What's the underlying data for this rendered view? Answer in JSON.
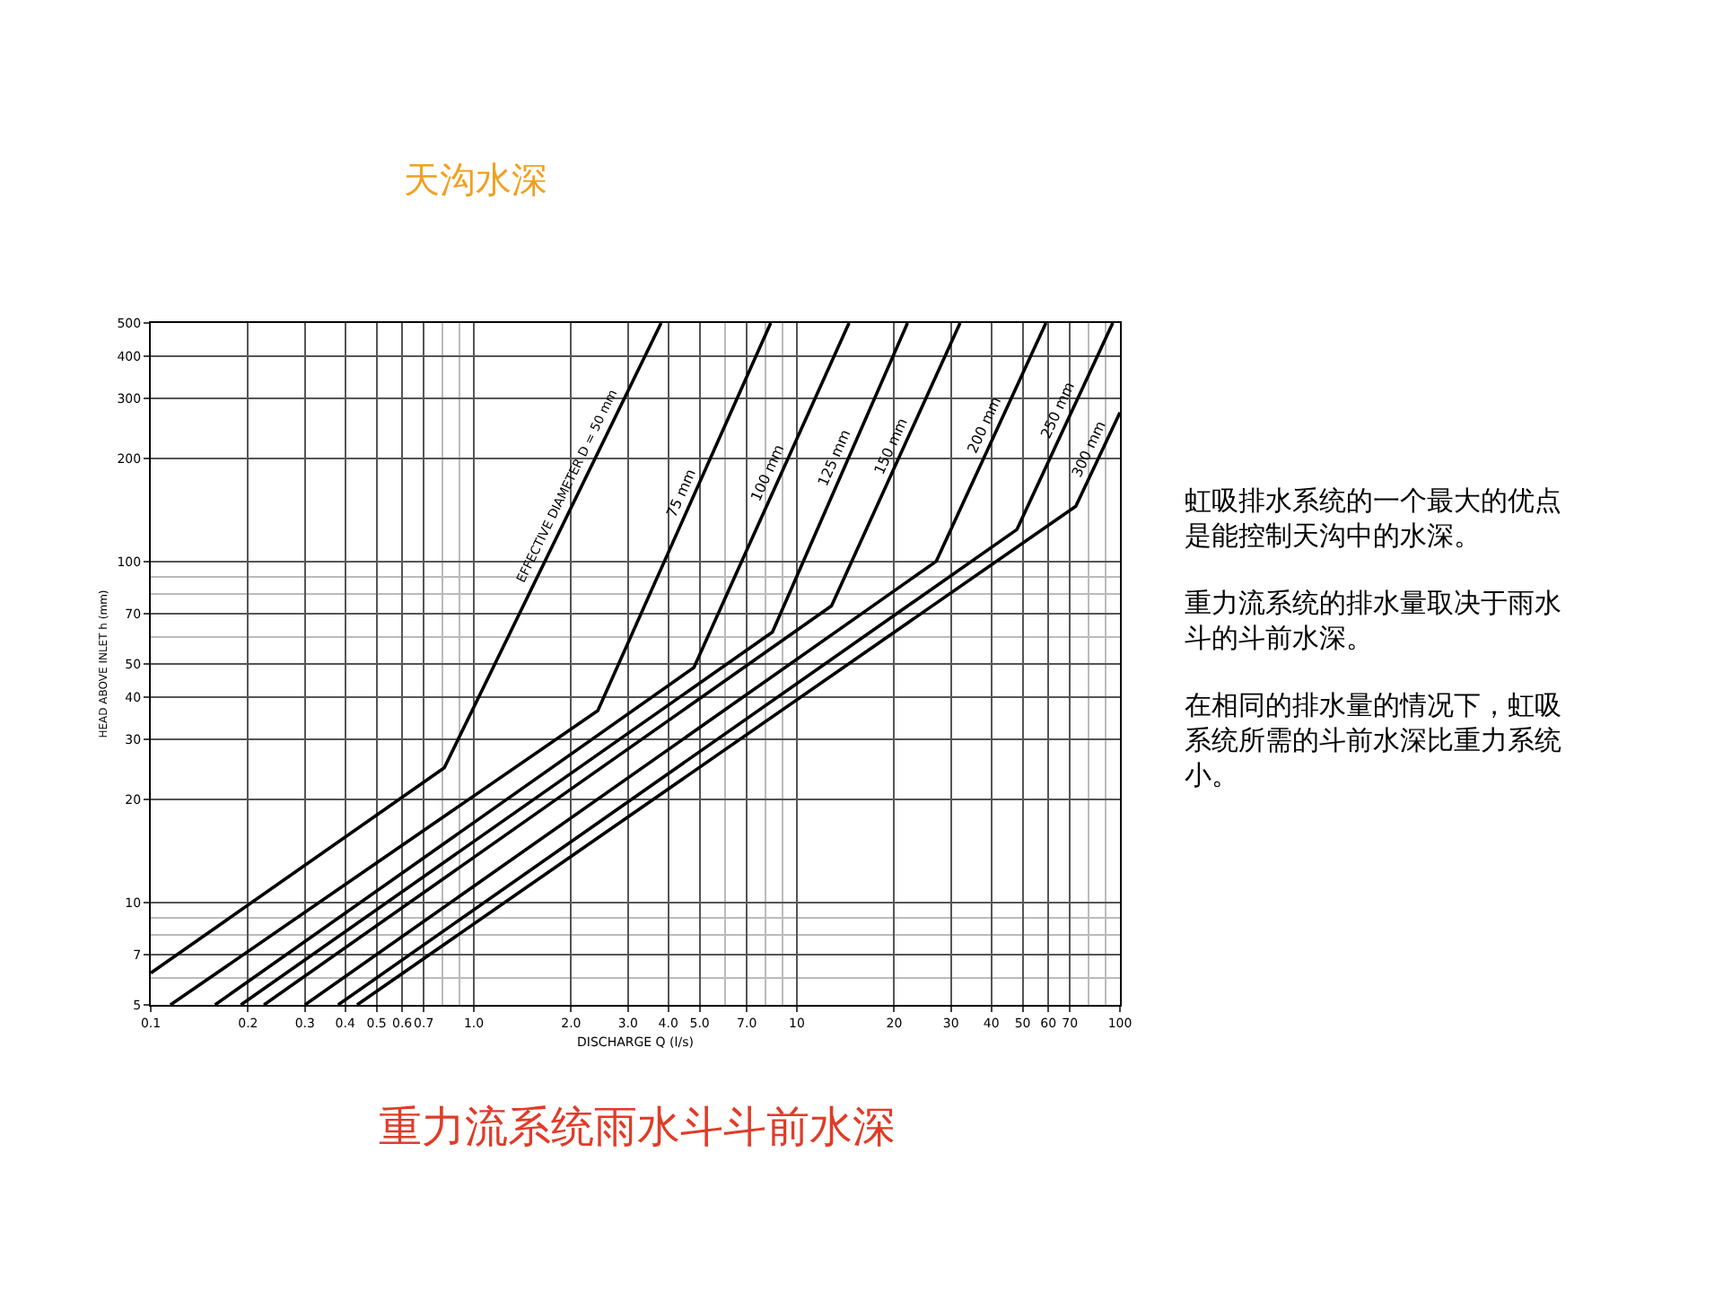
{
  "chart_data": {
    "type": "line",
    "title": "天沟水深",
    "xlabel": "DISCHARGE Q (l/s)",
    "ylabel": "HEAD ABOVE INLET h (mm)",
    "log": "xy",
    "grid": true,
    "legend": false,
    "marker": "none",
    "line_style": "solid",
    "xlim": [
      0.1,
      100
    ],
    "ylim": [
      5,
      500
    ],
    "xticks": [
      0.1,
      0.2,
      0.3,
      0.4,
      0.5,
      0.6,
      0.7,
      {
        "value": 1,
        "label": "1.0"
      },
      {
        "value": 2,
        "label": "2.0"
      },
      {
        "value": 3,
        "label": "3.0"
      },
      {
        "value": 4,
        "label": "4.0"
      },
      {
        "value": 5,
        "label": "5.0"
      },
      {
        "value": 7,
        "label": "7.0"
      },
      10,
      20,
      30,
      40,
      50,
      60,
      70,
      100
    ],
    "yticks": [
      5,
      7,
      10,
      20,
      30,
      40,
      50,
      70,
      100,
      200,
      300,
      400,
      500
    ],
    "series": [
      {
        "name": "EFFECTIVE DIAMETER D = 50 mm",
        "color": "#000000",
        "x": [
          0.1,
          0.81,
          3.8
        ],
        "values": [
          6.2,
          24.8,
          500
        ]
      },
      {
        "name": "75 mm",
        "color": "#000000",
        "x": [
          0.115,
          2.42,
          8.3
        ],
        "values": [
          5,
          36.5,
          500
        ]
      },
      {
        "name": "100 mm",
        "color": "#000000",
        "x": [
          0.158,
          4.8,
          14.5
        ],
        "values": [
          5,
          48.8,
          500
        ]
      },
      {
        "name": "125 mm",
        "color": "#000000",
        "x": [
          0.19,
          8.4,
          22
        ],
        "values": [
          5,
          62,
          500
        ]
      },
      {
        "name": "150 mm",
        "color": "#000000",
        "x": [
          0.224,
          12.8,
          32
        ],
        "values": [
          5,
          74,
          500
        ]
      },
      {
        "name": "200 mm",
        "color": "#000000",
        "x": [
          0.3,
          27,
          59
        ],
        "values": [
          5,
          100,
          500
        ]
      },
      {
        "name": "250 mm",
        "color": "#000000",
        "x": [
          0.38,
          48,
          95
        ],
        "values": [
          5,
          124,
          500
        ]
      },
      {
        "name": "300 mm",
        "color": "#000000",
        "x": [
          0.435,
          73,
          100
        ],
        "values": [
          5,
          145,
          273
        ]
      }
    ],
    "annotations": [
      "重力流系统雨水斗斗前水深",
      "虹吸排水系统的一个最大的优点是能控制天沟中的水深。",
      "重力流系统的排水量取决于雨水斗的斗前水深。",
      "在相同的排水量的情况下，虹吸系统所需的斗前水深比重力系统小。"
    ]
  }
}
